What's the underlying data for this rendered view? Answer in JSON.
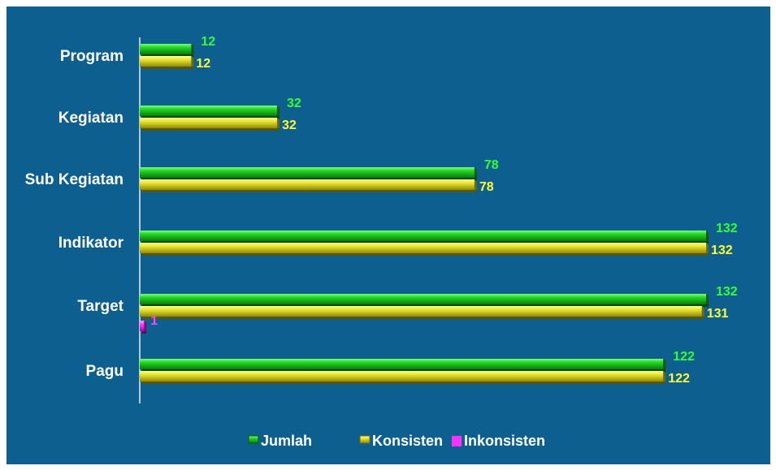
{
  "chart_data": {
    "type": "bar",
    "orientation": "horizontal",
    "categories": [
      "Program",
      "Kegiatan",
      "Sub Kegiatan",
      "Indikator",
      "Target",
      "Pagu"
    ],
    "series": [
      {
        "name": "Jumlah",
        "values": [
          12,
          32,
          78,
          132,
          132,
          122
        ],
        "labels": [
          "12",
          "32",
          "78",
          "132",
          "132",
          "122"
        ],
        "color": "#1fd21f",
        "label_color": "#33ff33"
      },
      {
        "name": "Konsisten",
        "values": [
          12,
          32,
          78,
          132,
          131,
          122
        ],
        "labels": [
          "12",
          "32",
          "78",
          "132",
          "131",
          "122"
        ],
        "color": "#e8e82a",
        "label_color": "#ffff33"
      },
      {
        "name": "Inkonsisten",
        "values": [
          null,
          null,
          null,
          null,
          1,
          null
        ],
        "labels": [
          "",
          "",
          "",
          "",
          "1",
          ""
        ],
        "color": "#ff33ff",
        "label_color": "#ff44ff"
      }
    ],
    "xlim": [
      0,
      132
    ],
    "grid": false,
    "legend_position": "bottom",
    "background": "#0d5f8f",
    "title": "",
    "xlabel": "",
    "ylabel": ""
  }
}
